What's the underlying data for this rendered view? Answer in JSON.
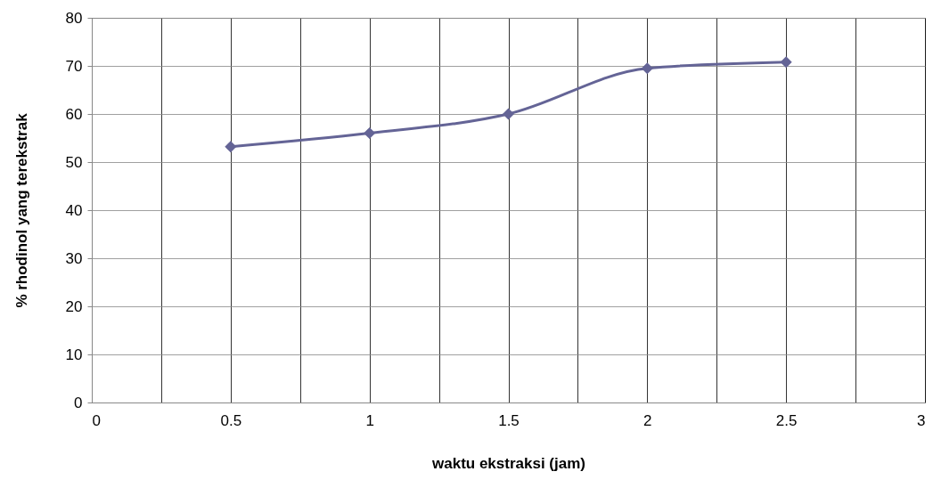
{
  "chart_data": {
    "type": "line",
    "xlabel": "waktu ekstraksi (jam)",
    "ylabel": "% rhodinol yang terekstrak",
    "x": [
      0.5,
      1,
      1.5,
      2,
      2.5
    ],
    "series": [
      {
        "color": "#646496",
        "values": [
          53.2,
          56,
          60,
          69.5,
          70.8
        ]
      }
    ],
    "xlim": [
      0,
      3
    ],
    "xticks": [
      0,
      {
        "value": 0.25,
        "label": null
      },
      0.5,
      {
        "value": 0.75,
        "label": null
      },
      1,
      {
        "value": 1.25,
        "label": null
      },
      1.5,
      {
        "value": 1.75,
        "label": null
      },
      2,
      {
        "value": 2.25,
        "label": null
      },
      2.5,
      {
        "value": 2.75,
        "label": null
      },
      3
    ],
    "ylim": [
      0,
      80
    ],
    "yticks": [
      0,
      10,
      20,
      30,
      40,
      50,
      60,
      70,
      80
    ],
    "grid": true,
    "marker": "diamond",
    "line_style": "solid"
  }
}
